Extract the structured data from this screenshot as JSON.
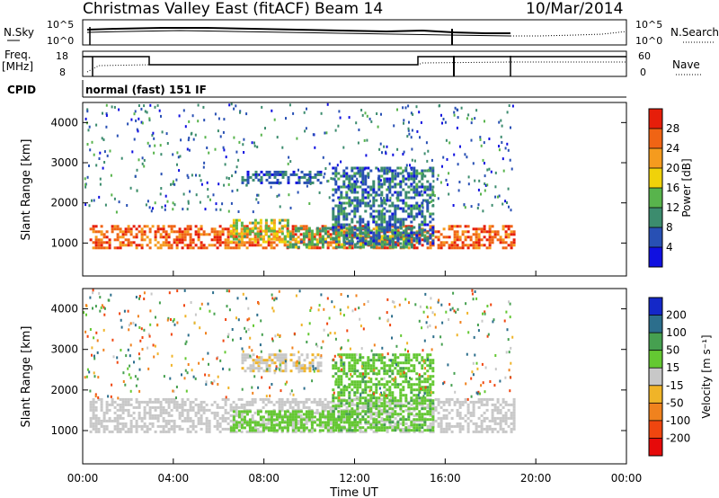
{
  "header": {
    "title": "Christmas Valley East (fitACF)",
    "beam": "Beam 14",
    "date": "10/Mar/2014"
  },
  "strip_labels": {
    "nsky": "N.Sky",
    "nsearch": "N.Search",
    "freq": "Freq.",
    "freq_unit": "[MHz]",
    "nave": "Nave",
    "cpid": "CPID",
    "cpid_value": "normal (fast) 151 IF"
  },
  "colorbar_power": {
    "label": "Power [dB]",
    "ticks": [
      "4",
      "8",
      "12",
      "16",
      "20",
      "24",
      "28"
    ],
    "colors": [
      "#1010e0",
      "#2850b4",
      "#3c8c6e",
      "#58b44c",
      "#f0d20a",
      "#f59b1e",
      "#f06414",
      "#e61e0a"
    ]
  },
  "colorbar_velocity": {
    "label": "Velocity [m s⁻¹]",
    "ticks": [
      "-200",
      "-100",
      "-50",
      "-15",
      "15",
      "50",
      "100",
      "200"
    ],
    "colors": [
      "#e60a0a",
      "#f0460f",
      "#f0821e",
      "#f0b428",
      "#c8c8c8",
      "#64c832",
      "#46a050",
      "#2c6e8c",
      "#1428c8"
    ]
  },
  "chart_data": [
    {
      "type": "line",
      "name": "noise-strip",
      "left_axis": {
        "label": "N.Sky",
        "ticks": [
          "10^5",
          "10^0"
        ]
      },
      "right_axis": {
        "label": "N.Search",
        "ticks": [
          "10^5",
          "10^0"
        ]
      }
    },
    {
      "type": "line",
      "name": "frequency-strip",
      "left_axis": {
        "label": "Freq. [MHz]",
        "ticks": [
          "18",
          "8"
        ]
      },
      "right_axis": {
        "label": "Nave",
        "ticks": [
          "60",
          "0"
        ]
      }
    },
    {
      "type": "heatmap",
      "name": "power-panel",
      "xlabel": "",
      "ylabel": "Slant Range [km]",
      "xlim": [
        0,
        24
      ],
      "ylim": [
        180,
        4500
      ],
      "yticks": [
        1000,
        2000,
        3000,
        4000
      ],
      "bands": [
        {
          "x": [
            0.3,
            19
          ],
          "y": [
            850,
            1450
          ],
          "v": 26
        },
        {
          "x": [
            6.5,
            9
          ],
          "y": [
            1000,
            1600
          ],
          "v": 16
        },
        {
          "x": [
            9,
            14.5
          ],
          "y": [
            900,
            1400
          ],
          "v": 12
        },
        {
          "x": [
            7,
            10.5
          ],
          "y": [
            2500,
            2800
          ],
          "v": 7
        },
        {
          "x": [
            11,
            15.5
          ],
          "y": [
            1000,
            2900
          ],
          "v": 8
        }
      ]
    },
    {
      "type": "heatmap",
      "name": "velocity-panel",
      "xlabel": "Time UT",
      "ylabel": "Slant Range [km]",
      "xlim": [
        0,
        24
      ],
      "ylim": [
        180,
        4500
      ],
      "xticks": [
        "00:00",
        "04:00",
        "08:00",
        "12:00",
        "16:00",
        "20:00",
        "00:00"
      ],
      "yticks": [
        1000,
        2000,
        3000,
        4000
      ],
      "bands": [
        {
          "x": [
            0.3,
            19
          ],
          "y": [
            1000,
            1800
          ],
          "v": 0
        },
        {
          "x": [
            6.5,
            12
          ],
          "y": [
            1000,
            1500
          ],
          "v": 30
        },
        {
          "x": [
            11,
            15.5
          ],
          "y": [
            1000,
            2900
          ],
          "v": 40
        },
        {
          "x": [
            7,
            10.5
          ],
          "y": [
            2500,
            2900
          ],
          "v": -10
        }
      ]
    }
  ]
}
